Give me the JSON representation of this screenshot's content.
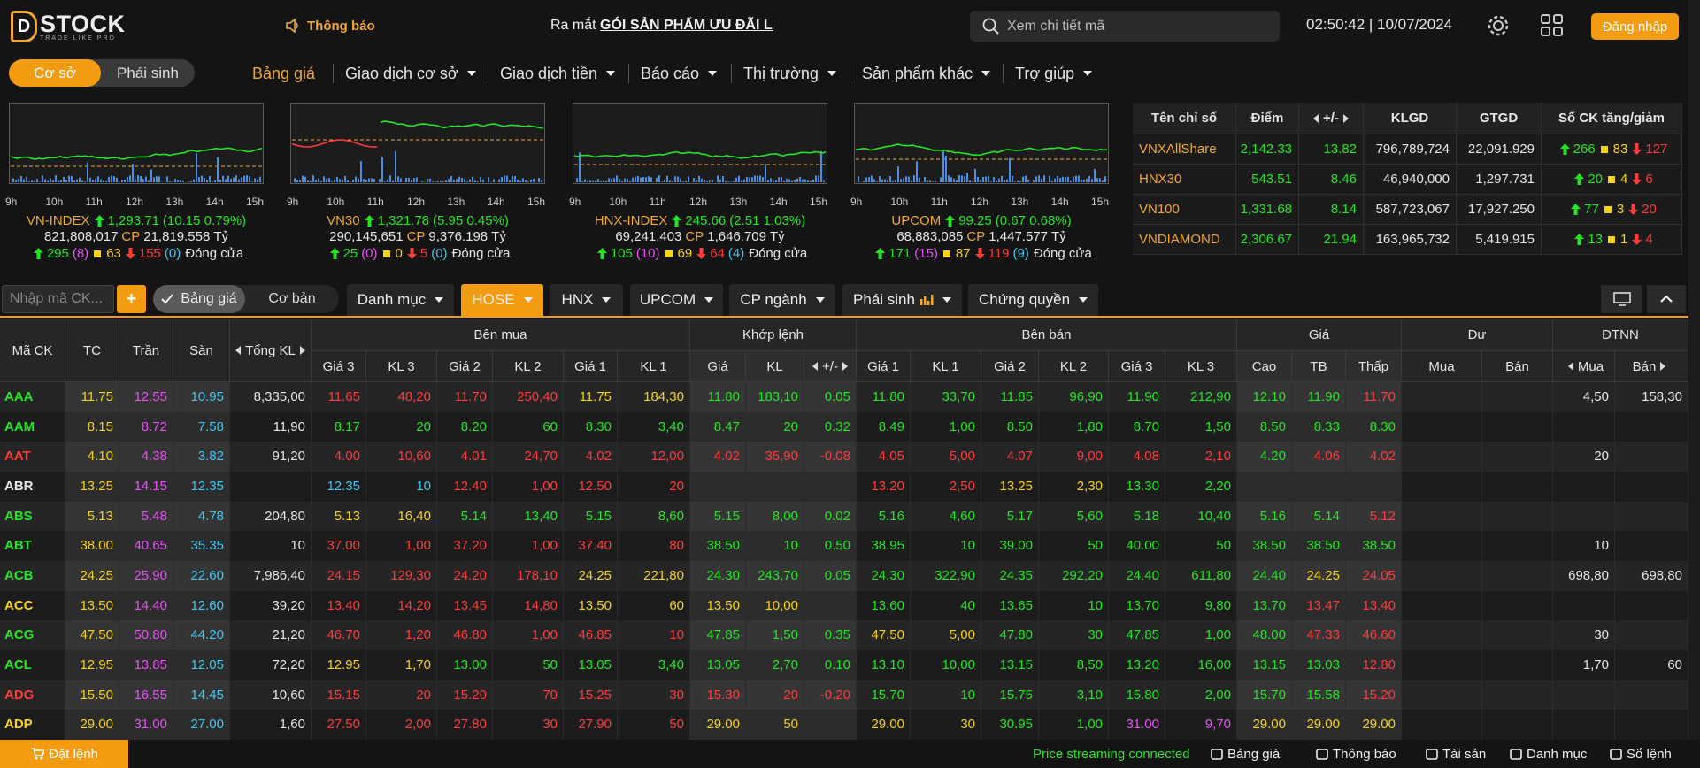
{
  "header": {
    "logo_mark": "D",
    "logo": "STOCK",
    "logo_tagline": "TRADE LIKE PRO",
    "notice": "Thông báo",
    "marquee_prefix": "Ra mắt",
    "marquee_highlight": "GÓI SẢN PHẨM ƯU ĐÃI LÃI",
    "search_placeholder": "Xem chi tiết mã",
    "clock": "02:50:42 | 10/07/2024",
    "login": "Đăng nhập"
  },
  "market_tabs": [
    "Cơ sở",
    "Phái sinh"
  ],
  "menu": [
    "Bảng giá",
    "Giao dịch cơ sở",
    "Giao dịch tiền",
    "Báo cáo",
    "Thị trường",
    "Sản phẩm khác",
    "Trợ giúp"
  ],
  "chart_hours": [
    "9h",
    "10h",
    "11h",
    "12h",
    "13h",
    "14h",
    "15h"
  ],
  "indices": [
    {
      "name": "VN-INDEX",
      "value": "1,293.71",
      "change": "(10.15 0.79%)",
      "volume": "821,808,017",
      "volume_unit": "CP",
      "turnover": "21,819.558",
      "turnover_unit": "Tỷ",
      "advances": "295",
      "ceiling": "(8)",
      "unchanged": "63",
      "declines": "155",
      "floor": "(0)",
      "status": "Đóng cửa"
    },
    {
      "name": "VN30",
      "value": "1,321.78",
      "change": "(5.95 0.45%)",
      "volume": "290,145,651",
      "volume_unit": "CP",
      "turnover": "9,376.198",
      "turnover_unit": "Tỷ",
      "advances": "25",
      "ceiling": "(0)",
      "unchanged": "0",
      "declines": "5",
      "floor": "(0)",
      "status": "Đóng cửa"
    },
    {
      "name": "HNX-INDEX",
      "value": "245.66",
      "change": "(2.51 1.03%)",
      "volume": "69,241,403",
      "volume_unit": "CP",
      "turnover": "1,646.709",
      "turnover_unit": "Tỷ",
      "advances": "105",
      "ceiling": "(10)",
      "unchanged": "69",
      "declines": "64",
      "floor": "(4)",
      "status": "Đóng cửa"
    },
    {
      "name": "UPCOM",
      "value": "99.25",
      "change": "(0.67 0.68%)",
      "volume": "68,883,085",
      "volume_unit": "CP",
      "turnover": "1,447.577",
      "turnover_unit": "Tỷ",
      "advances": "171",
      "ceiling": "(15)",
      "unchanged": "87",
      "declines": "119",
      "floor": "(9)",
      "status": "Đóng cửa"
    }
  ],
  "index_table": {
    "headers": [
      "Tên chỉ số",
      "Điểm",
      "+/-",
      "KLGD",
      "GTGD",
      "Số CK tăng/giảm"
    ],
    "rows": [
      [
        "VNXAllShare",
        "2,142.33",
        "13.82",
        "796,789,724",
        "22,091.929",
        "266",
        "83",
        "127"
      ],
      [
        "HNX30",
        "543.51",
        "8.46",
        "46,940,000",
        "1,297.731",
        "20",
        "4",
        "6"
      ],
      [
        "VN100",
        "1,331.68",
        "8.14",
        "587,723,067",
        "17,927.250",
        "77",
        "3",
        "20"
      ],
      [
        "VNDIAMOND",
        "2,306.67",
        "21.94",
        "163,965,732",
        "5,419.915",
        "13",
        "1",
        "4"
      ]
    ]
  },
  "toolbar": {
    "search_placeholder": "Nhập mã CK...",
    "add": "+",
    "view_modes": [
      "Bảng giá",
      "Cơ bản"
    ],
    "filters": [
      "Danh mục",
      "HOSE",
      "HNX",
      "UPCOM",
      "CP ngành",
      "Phái sinh",
      "Chứng quyền"
    ]
  },
  "board": {
    "group_headers": [
      "Mã CK",
      "TC",
      "Trần",
      "Sàn",
      "Tổng KL",
      "Bên mua",
      "Khớp lệnh",
      "Bên bán",
      "Giá",
      "Dư",
      "ĐTNN"
    ],
    "sub_headers": [
      "Giá 3",
      "KL 3",
      "Giá 2",
      "KL 2",
      "Giá 1",
      "KL 1",
      "Giá",
      "KL",
      "+/-",
      "Giá 1",
      "KL 1",
      "Giá 2",
      "KL 2",
      "Giá 3",
      "KL 3",
      "Cao",
      "TB",
      "Thấp",
      "Mua",
      "Bán",
      "Mua",
      "Bán"
    ],
    "rows": [
      [
        "AAA",
        "11.75",
        "12.55",
        "10.95",
        "8,335,00",
        "11.65",
        "48,20",
        "11.70",
        "250,40",
        "11.75",
        "184,30",
        "11.80",
        "183,10",
        "0.05",
        "11.80",
        "33,70",
        "11.85",
        "96,90",
        "11.90",
        "212,90",
        "12.10",
        "11.90",
        "11.70",
        null,
        null,
        "4,50",
        "158,30"
      ],
      [
        "AAM",
        "8.15",
        "8.72",
        "7.58",
        "11,90",
        "8.17",
        "20",
        "8.20",
        "60",
        "8.30",
        "3,40",
        "8.47",
        "20",
        "0.32",
        "8.49",
        "1,00",
        "8.50",
        "1,80",
        "8.70",
        "1,50",
        "8.50",
        "8.33",
        "8.30",
        null,
        null,
        null,
        null
      ],
      [
        "AAT",
        "4.10",
        "4.38",
        "3.82",
        "91,20",
        "4.00",
        "10,60",
        "4.01",
        "24,70",
        "4.02",
        "12,00",
        "4.02",
        "35,90",
        "-0.08",
        "4.05",
        "5,00",
        "4.07",
        "9,00",
        "4.08",
        "2,10",
        "4.20",
        "4.06",
        "4.02",
        null,
        null,
        "20",
        null
      ],
      [
        "ABR",
        "13.25",
        "14.15",
        "12.35",
        null,
        "12.35",
        "10",
        "12.40",
        "1,00",
        "12.50",
        "20",
        null,
        null,
        null,
        "13.20",
        "2,50",
        "13.25",
        "2,30",
        "13.30",
        "2,20",
        null,
        null,
        null,
        null,
        null,
        null,
        null
      ],
      [
        "ABS",
        "5.13",
        "5.48",
        "4.78",
        "204,80",
        "5.13",
        "16,40",
        "5.14",
        "13,40",
        "5.15",
        "8,60",
        "5.15",
        "8,00",
        "0.02",
        "5.16",
        "4,60",
        "5.17",
        "5,60",
        "5.18",
        "10,40",
        "5.16",
        "5.14",
        "5.12",
        null,
        null,
        null,
        null
      ],
      [
        "ABT",
        "38.00",
        "40.65",
        "35.35",
        "10",
        "37.00",
        "1,00",
        "37.20",
        "1,00",
        "37.40",
        "80",
        "38.50",
        "10",
        "0.50",
        "38.95",
        "10",
        "39.00",
        "50",
        "40.00",
        "50",
        "38.50",
        "38.50",
        "38.50",
        null,
        null,
        "10",
        null
      ],
      [
        "ACB",
        "24.25",
        "25.90",
        "22.60",
        "7,986,40",
        "24.15",
        "129,30",
        "24.20",
        "178,10",
        "24.25",
        "221,80",
        "24.30",
        "243,70",
        "0.05",
        "24.30",
        "322,90",
        "24.35",
        "292,20",
        "24.40",
        "611,80",
        "24.40",
        "24.25",
        "24.05",
        null,
        null,
        "698,80",
        "698,80"
      ],
      [
        "ACC",
        "13.50",
        "14.40",
        "12.60",
        "39,20",
        "13.40",
        "14,20",
        "13.45",
        "14,80",
        "13.50",
        "60",
        "13.50",
        "10,00",
        null,
        "13.60",
        "40",
        "13.65",
        "10",
        "13.70",
        "9,80",
        "13.70",
        "13.47",
        "13.40",
        null,
        null,
        null,
        null
      ],
      [
        "ACG",
        "47.50",
        "50.80",
        "44.20",
        "21,20",
        "46.70",
        "1,20",
        "46.80",
        "1,00",
        "46.85",
        "10",
        "47.85",
        "1,50",
        "0.35",
        "47.50",
        "5,00",
        "47.80",
        "30",
        "47.85",
        "1,00",
        "48.00",
        "47.33",
        "46.60",
        null,
        null,
        "30",
        null
      ],
      [
        "ACL",
        "12.95",
        "13.85",
        "12.05",
        "72,20",
        "12.95",
        "1,70",
        "13.00",
        "50",
        "13.05",
        "3,40",
        "13.05",
        "2,70",
        "0.10",
        "13.10",
        "10,00",
        "13.15",
        "8,50",
        "13.20",
        "16,00",
        "13.15",
        "13.03",
        "12.80",
        null,
        null,
        "1,70",
        "60"
      ],
      [
        "ADG",
        "15.50",
        "16.55",
        "14.45",
        "10,60",
        "15.15",
        "20",
        "15.20",
        "70",
        "15.25",
        "30",
        "15.30",
        "20",
        "-0.20",
        "15.70",
        "10",
        "15.75",
        "3,10",
        "15.80",
        "2,00",
        "15.70",
        "15.58",
        "15.20",
        null,
        null,
        null,
        null
      ],
      [
        "ADP",
        "29.00",
        "31.00",
        "27.00",
        "1,60",
        "27.50",
        "2,00",
        "27.80",
        "30",
        "27.90",
        "50",
        "29.00",
        "50",
        null,
        "29.00",
        "30",
        "30.95",
        "1,00",
        "31.00",
        "9,70",
        "29.00",
        "29.00",
        "29.00",
        null,
        null,
        null,
        null
      ]
    ]
  },
  "footer": {
    "order": "Đặt lệnh",
    "status": "Price streaming connected",
    "links": [
      "Bảng giá",
      "Thông báo",
      "Tài sản",
      "Danh mục",
      "Sổ lệnh"
    ]
  }
}
